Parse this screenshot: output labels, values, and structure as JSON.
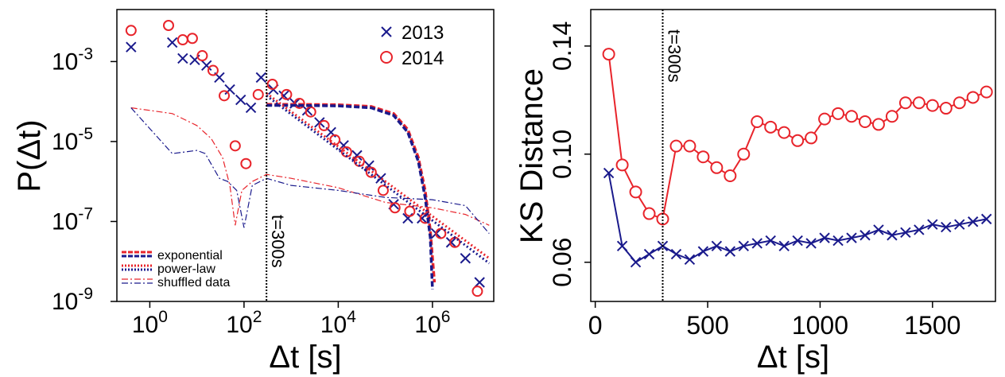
{
  "chart_data": [
    {
      "type": "scatter",
      "xscale": "log",
      "yscale": "log",
      "xlim": [
        0.2,
        20000000
      ],
      "ylim": [
        1e-09,
        0.02
      ],
      "xlabel": "Δt [s]",
      "ylabel": "P(Δt)",
      "x_ticks": [
        1,
        100,
        10000,
        1000000
      ],
      "x_tick_labels": [
        {
          "base": "10",
          "exp": "0"
        },
        {
          "base": "10",
          "exp": "2"
        },
        {
          "base": "10",
          "exp": "4"
        },
        {
          "base": "10",
          "exp": "6"
        }
      ],
      "y_ticks": [
        1e-09,
        1e-07,
        1e-05,
        0.001
      ],
      "y_tick_labels": [
        {
          "base": "10",
          "exp": "-9"
        },
        {
          "base": "10",
          "exp": "-7"
        },
        {
          "base": "10",
          "exp": "-5"
        },
        {
          "base": "10",
          "exp": "-3"
        }
      ],
      "vline": {
        "x": 300,
        "label": "t=300s"
      },
      "legend_top": {
        "placement": "top-right",
        "entries": [
          {
            "label": "2013",
            "marker": "x",
            "color": "#1a1a8c"
          },
          {
            "label": "2014",
            "marker": "o",
            "color": "#e8242b"
          }
        ]
      },
      "legend_bottom": {
        "placement": "bottom-left",
        "entries": [
          {
            "label": "exponential",
            "style": "dashed"
          },
          {
            "label": "power-law",
            "style": "dotted"
          },
          {
            "label": "shuffled data",
            "style": "dashdot"
          }
        ]
      },
      "series": [
        {
          "name": "2013",
          "marker": "x",
          "color": "#1a1a8c",
          "points": [
            [
              0.4,
              0.0023
            ],
            [
              3,
              0.003
            ],
            [
              5,
              0.0012
            ],
            [
              9,
              0.0011
            ],
            [
              16,
              0.0008
            ],
            [
              30,
              0.0004
            ],
            [
              50,
              0.0002
            ],
            [
              85,
              0.00011
            ],
            [
              140,
              7e-05
            ],
            [
              230,
              0.0004
            ],
            [
              420,
              0.0002
            ],
            [
              700,
              0.00014
            ],
            [
              1200,
              9e-05
            ],
            [
              2200,
              6e-05
            ],
            [
              4000,
              3e-05
            ],
            [
              7000,
              1.7e-05
            ],
            [
              13000,
              8e-06
            ],
            [
              25000,
              4.5e-06
            ],
            [
              45000,
              2.5e-06
            ],
            [
              80000,
              1.2e-06
            ],
            [
              150000,
              2.7e-07
            ],
            [
              300000,
              1.2e-07
            ],
            [
              600000,
              1.2e-07
            ],
            [
              1200000,
              5e-08
            ],
            [
              2500000,
              3e-08
            ],
            [
              5000000,
              1.2e-08
            ],
            [
              10000000,
              3e-09
            ]
          ]
        },
        {
          "name": "2014",
          "marker": "o",
          "color": "#e8242b",
          "points": [
            [
              0.4,
              0.006
            ],
            [
              2.5,
              0.008
            ],
            [
              5,
              0.0035
            ],
            [
              8,
              0.0038
            ],
            [
              13,
              0.0014
            ],
            [
              22,
              0.0006
            ],
            [
              38,
              0.00014
            ],
            [
              65,
              7.8e-06
            ],
            [
              110,
              2.8e-06
            ],
            [
              200,
              0.00015
            ],
            [
              400,
              0.00027
            ],
            [
              800,
              0.00015
            ],
            [
              1500,
              9e-05
            ],
            [
              2600,
              5.5e-05
            ],
            [
              5000,
              2.5e-05
            ],
            [
              8500,
              1.1e-05
            ],
            [
              15000,
              5.5e-06
            ],
            [
              28000,
              3.2e-06
            ],
            [
              50000,
              1.7e-06
            ],
            [
              90000,
              6e-07
            ],
            [
              160000,
              2.2e-07
            ],
            [
              330000,
              1.8e-07
            ],
            [
              700000,
              1.2e-07
            ],
            [
              1500000,
              5e-08
            ],
            [
              3000000,
              3e-08
            ],
            [
              9000000,
              1.8e-09
            ]
          ]
        },
        {
          "name": "exponential fit 2014",
          "style": "dashed",
          "color": "#e8242b",
          "points": [
            [
              300,
              8.5e-05
            ],
            [
              1000,
              8.5e-05
            ],
            [
              10000,
              8.3e-05
            ],
            [
              50000,
              7.5e-05
            ],
            [
              150000,
              5e-05
            ],
            [
              300000,
              2e-05
            ],
            [
              500000,
              4e-06
            ],
            [
              700000,
              6e-07
            ],
            [
              900000,
              6e-08
            ],
            [
              1100000,
              3e-09
            ]
          ]
        },
        {
          "name": "exponential fit 2013",
          "style": "dashed",
          "color": "#1a1a8c",
          "points": [
            [
              300,
              8e-05
            ],
            [
              1000,
              8e-05
            ],
            [
              10000,
              7.8e-05
            ],
            [
              50000,
              7e-05
            ],
            [
              150000,
              4.5e-05
            ],
            [
              300000,
              1.7e-05
            ],
            [
              500000,
              3.2e-06
            ],
            [
              700000,
              4e-07
            ],
            [
              900000,
              4e-08
            ],
            [
              1000000,
              2e-09
            ]
          ]
        },
        {
          "name": "power-law fit 2014",
          "style": "dotted",
          "color": "#e8242b",
          "points": [
            [
              300,
              0.00016
            ],
            [
              16000000,
              1.2e-08
            ]
          ]
        },
        {
          "name": "power-law fit 2013",
          "style": "dotted",
          "color": "#1a1a8c",
          "points": [
            [
              300,
              0.00014
            ],
            [
              16000000,
              9e-09
            ]
          ]
        },
        {
          "name": "shuffled data 2014",
          "style": "dashdot",
          "color": "#e8242b",
          "points": [
            [
              0.4,
              7e-05
            ],
            [
              3,
              5e-05
            ],
            [
              10,
              2.5e-05
            ],
            [
              20,
              1.2e-05
            ],
            [
              35,
              4e-06
            ],
            [
              50,
              8e-07
            ],
            [
              65,
              8e-08
            ],
            [
              90,
              6e-07
            ],
            [
              150,
              1e-06
            ],
            [
              300,
              1.5e-06
            ],
            [
              1000,
              1.2e-06
            ],
            [
              10000,
              7e-07
            ],
            [
              100000,
              3e-07
            ],
            [
              1000000,
              2.2e-07
            ],
            [
              5000000,
              1.5e-07
            ],
            [
              16000000,
              8e-08
            ]
          ]
        },
        {
          "name": "shuffled data 2013",
          "style": "dashdot",
          "color": "#1a1a8c",
          "points": [
            [
              0.4,
              7e-05
            ],
            [
              3,
              5e-06
            ],
            [
              10,
              6e-06
            ],
            [
              15,
              5e-06
            ],
            [
              30,
              1.2e-06
            ],
            [
              45,
              1e-06
            ],
            [
              70,
              6e-07
            ],
            [
              100,
              7e-08
            ],
            [
              150,
              8e-07
            ],
            [
              300,
              1.2e-06
            ],
            [
              1000,
              8e-07
            ],
            [
              10000,
              6e-07
            ],
            [
              100000,
              4e-07
            ],
            [
              1000000,
              3.5e-07
            ],
            [
              5000000,
              2.5e-07
            ],
            [
              16000000,
              5e-08
            ]
          ]
        }
      ]
    },
    {
      "type": "line",
      "xscale": "linear",
      "yscale": "linear",
      "xlim": [
        -20,
        1780
      ],
      "ylim": [
        0.0455,
        0.1535
      ],
      "xlabel": "Δt [s]",
      "ylabel": "KS Distance",
      "x_ticks": [
        0,
        500,
        1000,
        1500
      ],
      "x_tick_labels": [
        "0",
        "500",
        "1000",
        "1500"
      ],
      "y_ticks": [
        0.06,
        0.1,
        0.14
      ],
      "y_tick_labels": [
        "0.06",
        "0.10",
        "0.14"
      ],
      "vline": {
        "x": 300,
        "label": "t=300s"
      },
      "series": [
        {
          "name": "2014",
          "marker": "o",
          "color": "#e8242b",
          "points": [
            [
              60,
              0.137
            ],
            [
              120,
              0.096
            ],
            [
              180,
              0.086
            ],
            [
              240,
              0.078
            ],
            [
              300,
              0.076
            ],
            [
              360,
              0.103
            ],
            [
              420,
              0.103
            ],
            [
              480,
              0.099
            ],
            [
              540,
              0.095
            ],
            [
              600,
              0.092
            ],
            [
              660,
              0.1
            ],
            [
              720,
              0.112
            ],
            [
              780,
              0.11
            ],
            [
              840,
              0.108
            ],
            [
              900,
              0.105
            ],
            [
              960,
              0.106
            ],
            [
              1020,
              0.113
            ],
            [
              1080,
              0.115
            ],
            [
              1140,
              0.114
            ],
            [
              1200,
              0.112
            ],
            [
              1260,
              0.111
            ],
            [
              1320,
              0.114
            ],
            [
              1380,
              0.119
            ],
            [
              1440,
              0.119
            ],
            [
              1500,
              0.118
            ],
            [
              1560,
              0.117
            ],
            [
              1620,
              0.119
            ],
            [
              1680,
              0.121
            ],
            [
              1740,
              0.123
            ]
          ]
        },
        {
          "name": "2013",
          "marker": "x",
          "color": "#1a1a8c",
          "points": [
            [
              60,
              0.093
            ],
            [
              120,
              0.066
            ],
            [
              180,
              0.06
            ],
            [
              240,
              0.063
            ],
            [
              300,
              0.066
            ],
            [
              360,
              0.063
            ],
            [
              420,
              0.061
            ],
            [
              480,
              0.064
            ],
            [
              540,
              0.066
            ],
            [
              600,
              0.064
            ],
            [
              660,
              0.066
            ],
            [
              720,
              0.067
            ],
            [
              780,
              0.068
            ],
            [
              840,
              0.066
            ],
            [
              900,
              0.068
            ],
            [
              960,
              0.067
            ],
            [
              1020,
              0.069
            ],
            [
              1080,
              0.068
            ],
            [
              1140,
              0.069
            ],
            [
              1200,
              0.07
            ],
            [
              1260,
              0.072
            ],
            [
              1320,
              0.07
            ],
            [
              1380,
              0.071
            ],
            [
              1440,
              0.072
            ],
            [
              1500,
              0.074
            ],
            [
              1560,
              0.073
            ],
            [
              1620,
              0.074
            ],
            [
              1680,
              0.075
            ],
            [
              1740,
              0.076
            ]
          ]
        }
      ]
    }
  ]
}
